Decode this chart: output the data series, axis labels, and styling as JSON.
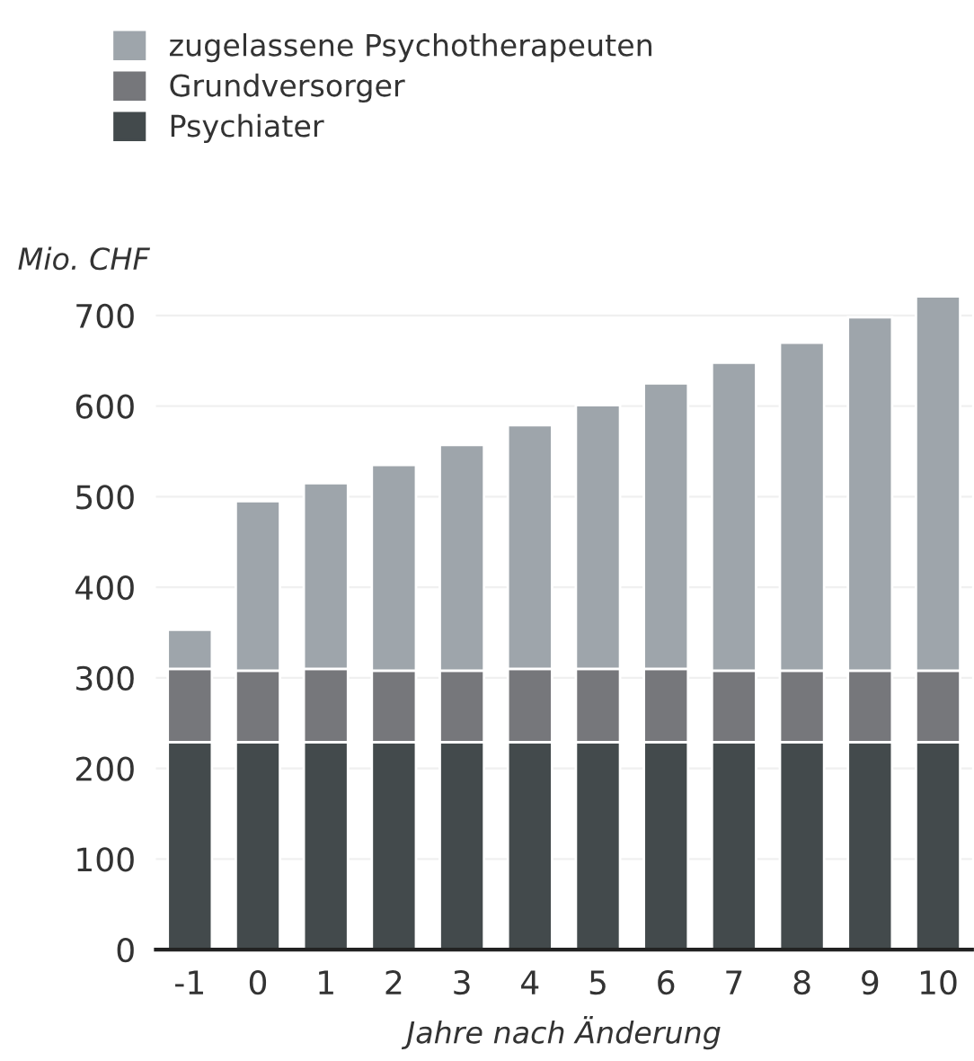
{
  "chart_data": {
    "type": "bar",
    "stacked": true,
    "ylabel": "Mio. CHF",
    "xlabel": "Jahre nach Änderung",
    "categories": [
      "-1",
      "0",
      "1",
      "2",
      "3",
      "4",
      "5",
      "6",
      "7",
      "8",
      "9",
      "10"
    ],
    "series": [
      {
        "name": "Psychiater",
        "color": "#434a4c",
        "values": [
          229,
          229,
          229,
          229,
          229,
          229,
          229,
          229,
          229,
          229,
          229,
          229
        ]
      },
      {
        "name": "Grundversorger",
        "color": "#76777b",
        "values": [
          81,
          79,
          81,
          79,
          79,
          81,
          81,
          81,
          79,
          79,
          79,
          79
        ]
      },
      {
        "name": "zugelassene Psychotherapeuten",
        "color": "#9ea5ab",
        "values": [
          43,
          187,
          205,
          227,
          249,
          269,
          291,
          315,
          340,
          362,
          390,
          413
        ]
      }
    ],
    "ylim": [
      0,
      725
    ],
    "yticks": [
      0,
      100,
      200,
      300,
      400,
      500,
      600,
      700
    ],
    "grid": "y",
    "legend": "top left"
  }
}
